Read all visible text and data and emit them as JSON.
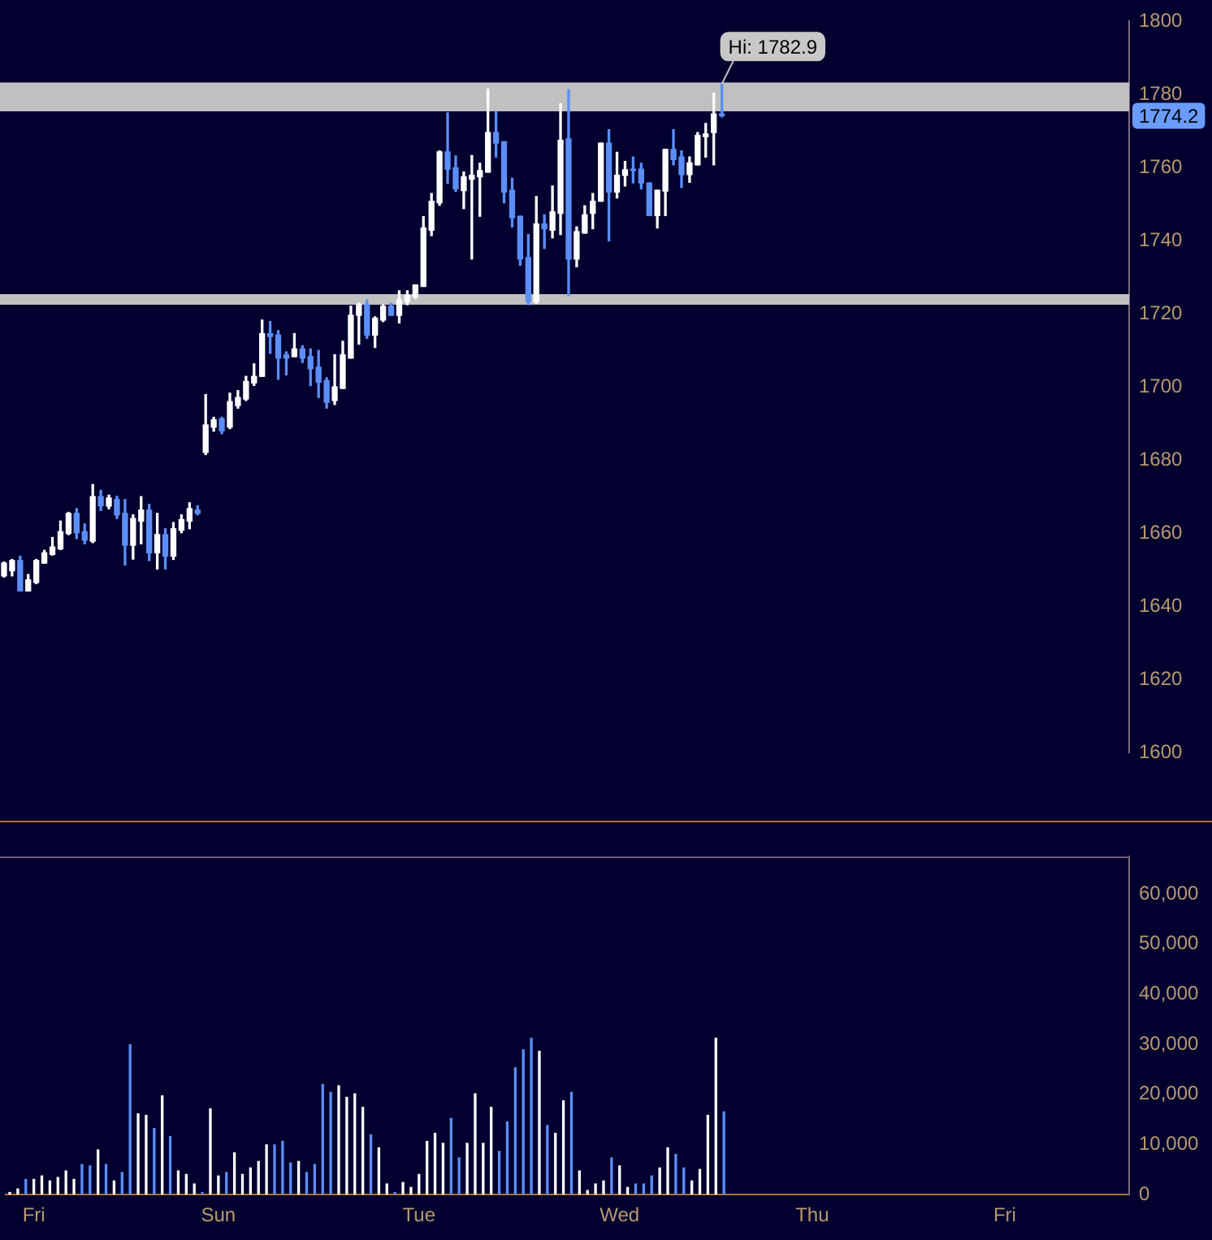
{
  "chart_data": [
    {
      "type": "candlestick",
      "categories": [
        null,
        null,
        null,
        null,
        null,
        null,
        null,
        null,
        null,
        null,
        null,
        null,
        null,
        null,
        null,
        null,
        null,
        null,
        null,
        null,
        null,
        null,
        null,
        null,
        null,
        null,
        null,
        null,
        null,
        null,
        null,
        null,
        null,
        null,
        null,
        null,
        null,
        null,
        null,
        null,
        null,
        null,
        null,
        null,
        null,
        null,
        null,
        null,
        null,
        null,
        null,
        null,
        null,
        null,
        null,
        null,
        null,
        null,
        null,
        null,
        null,
        null,
        null,
        null,
        null,
        null,
        null,
        null,
        null,
        null,
        null,
        null,
        null,
        null,
        null,
        null,
        null,
        null,
        null,
        null,
        null,
        null,
        null,
        null,
        null,
        null,
        null,
        null,
        null,
        null,
        null,
        null,
        null,
        null,
        null,
        null,
        null,
        null,
        null,
        null,
        null,
        null,
        null,
        null,
        null,
        null,
        null,
        null,
        null,
        null,
        null,
        null,
        null,
        null,
        null,
        null,
        null,
        null,
        null,
        null,
        null,
        null,
        null,
        null,
        null,
        null,
        null,
        null,
        null,
        null,
        null,
        null,
        null,
        null,
        null,
        null,
        null,
        null,
        null,
        null
      ],
      "ohlc": [
        [
          1648.3,
          1652.1,
          1648.0,
          1651.8
        ],
        [
          1649.7,
          1652.8,
          1648.3,
          1652.5
        ],
        [
          1652.5,
          1653.7,
          1644.2,
          1644.2
        ],
        [
          1644.2,
          1648.7,
          1644.2,
          1647.2
        ],
        [
          1646.5,
          1652.8,
          1646.2,
          1652.5
        ],
        [
          1651.8,
          1655.3,
          1651.8,
          1654.6
        ],
        [
          1654.2,
          1658.8,
          1654.0,
          1656.2
        ],
        [
          1655.7,
          1663.3,
          1655.5,
          1660.4
        ],
        [
          1659.9,
          1665.7,
          1659.6,
          1665.4
        ],
        [
          1665.4,
          1666.7,
          1658.5,
          1660.1
        ],
        [
          1660.4,
          1662.5,
          1657.1,
          1658.1
        ],
        [
          1657.8,
          1673.3,
          1657.4,
          1670.0
        ],
        [
          1670.0,
          1671.7,
          1666.2,
          1667.5
        ],
        [
          1667.4,
          1670.4,
          1666.7,
          1669.6
        ],
        [
          1669.2,
          1670.1,
          1664.0,
          1665.0
        ],
        [
          1665.4,
          1669.2,
          1651.3,
          1656.7
        ],
        [
          1656.7,
          1665.0,
          1652.9,
          1664.0
        ],
        [
          1663.3,
          1670.0,
          1657.1,
          1666.3
        ],
        [
          1666.3,
          1667.9,
          1652.5,
          1654.6
        ],
        [
          1654.6,
          1665.4,
          1650.2,
          1659.6
        ],
        [
          1659.6,
          1661.2,
          1650.2,
          1653.7
        ],
        [
          1653.7,
          1662.9,
          1652.8,
          1661.2
        ],
        [
          1660.8,
          1665.0,
          1660.1,
          1663.7
        ],
        [
          1663.3,
          1668.3,
          1661.2,
          1666.7
        ],
        [
          1666.3,
          1667.5,
          1665.0,
          1665.4
        ],
        [
          1682.1,
          1697.9,
          1681.5,
          1689.6
        ],
        [
          1689.0,
          1691.7,
          1687.9,
          1691.0
        ],
        [
          1691.3,
          1691.7,
          1687.2,
          1688.0
        ],
        [
          1689.0,
          1698.3,
          1688.6,
          1696.0
        ],
        [
          1694.9,
          1699.0,
          1694.2,
          1697.1
        ],
        [
          1696.7,
          1702.9,
          1696.3,
          1701.5
        ],
        [
          1701.1,
          1706.3,
          1700.4,
          1702.9
        ],
        [
          1702.9,
          1718.3,
          1702.9,
          1714.6
        ],
        [
          1714.6,
          1717.9,
          1709.2,
          1713.8
        ],
        [
          1714.2,
          1715.4,
          1702.1,
          1707.9
        ],
        [
          1708.8,
          1709.6,
          1703.3,
          1707.9
        ],
        [
          1708.3,
          1714.6,
          1708.3,
          1710.4
        ],
        [
          1710.4,
          1711.3,
          1706.7,
          1707.9
        ],
        [
          1708.3,
          1710.4,
          1700.4,
          1705.0
        ],
        [
          1705.4,
          1710.0,
          1697.1,
          1701.3
        ],
        [
          1701.7,
          1702.5,
          1694.2,
          1695.8
        ],
        [
          1696.3,
          1708.8,
          1695.2,
          1700.0
        ],
        [
          1699.6,
          1712.5,
          1699.6,
          1708.8
        ],
        [
          1707.9,
          1722.1,
          1707.9,
          1719.6
        ],
        [
          1719.6,
          1722.9,
          1711.7,
          1722.5
        ],
        [
          1722.5,
          1723.8,
          1713.3,
          1714.2
        ],
        [
          1714.2,
          1719.2,
          1710.8,
          1718.8
        ],
        [
          1718.3,
          1722.5,
          1717.9,
          1722.1
        ],
        [
          1722.1,
          1722.9,
          1719.6,
          1719.6
        ],
        [
          1719.6,
          1726.3,
          1717.5,
          1723.8
        ],
        [
          1723.3,
          1726.3,
          1722.5,
          1725.0
        ],
        [
          1724.6,
          1727.9,
          1724.2,
          1727.9
        ],
        [
          1727.5,
          1746.6,
          1727.5,
          1743.5
        ],
        [
          1742.9,
          1752.9,
          1741.4,
          1750.8
        ],
        [
          1750.4,
          1764.6,
          1749.7,
          1764.3
        ],
        [
          1764.3,
          1775.0,
          1755.7,
          1759.6
        ],
        [
          1760.0,
          1763.2,
          1753.5,
          1754.2
        ],
        [
          1753.7,
          1758.8,
          1748.8,
          1757.5
        ],
        [
          1756.8,
          1763.3,
          1735.0,
          1757.9
        ],
        [
          1757.5,
          1761.2,
          1746.7,
          1759.2
        ],
        [
          1758.8,
          1781.5,
          1758.8,
          1769.6
        ],
        [
          1769.6,
          1775.4,
          1762.9,
          1766.7
        ],
        [
          1767.1,
          1767.1,
          1750.4,
          1753.3
        ],
        [
          1753.8,
          1757.1,
          1743.8,
          1746.3
        ],
        [
          1746.7,
          1746.7,
          1733.3,
          1735.0
        ],
        [
          1735.4,
          1741.7,
          1722.5,
          1723.3
        ],
        [
          1723.3,
          1752.1,
          1722.9,
          1744.6
        ],
        [
          1744.6,
          1747.1,
          1737.9,
          1743.3
        ],
        [
          1742.9,
          1755.0,
          1740.8,
          1747.9
        ],
        [
          1747.5,
          1777.5,
          1741.7,
          1767.5
        ],
        [
          1767.9,
          1781.3,
          1725.0,
          1735.0
        ],
        [
          1735.0,
          1743.8,
          1732.9,
          1742.5
        ],
        [
          1742.1,
          1749.6,
          1742.1,
          1747.1
        ],
        [
          1747.5,
          1752.9,
          1743.3,
          1750.8
        ],
        [
          1750.8,
          1766.7,
          1750.8,
          1766.7
        ],
        [
          1766.7,
          1770.4,
          1740.0,
          1753.3
        ],
        [
          1753.3,
          1764.2,
          1751.7,
          1757.9
        ],
        [
          1757.9,
          1761.7,
          1755.0,
          1759.4
        ],
        [
          1759.6,
          1762.9,
          1755.8,
          1759.2
        ],
        [
          1759.6,
          1761.2,
          1754.2,
          1755.8
        ],
        [
          1755.8,
          1755.8,
          1746.9,
          1746.9
        ],
        [
          1746.9,
          1753.8,
          1743.5,
          1753.8
        ],
        [
          1753.6,
          1765.0,
          1746.9,
          1765.0
        ],
        [
          1765.0,
          1770.4,
          1760.8,
          1762.2
        ],
        [
          1762.9,
          1764.6,
          1754.6,
          1758.1
        ],
        [
          1758.1,
          1762.9,
          1756.0,
          1761.3
        ],
        [
          1760.8,
          1769.6,
          1760.8,
          1768.8
        ],
        [
          1768.5,
          1772.1,
          1762.9,
          1769.2
        ],
        [
          1769.6,
          1780.4,
          1760.8,
          1774.7
        ],
        [
          1774.7,
          1782.9,
          1773.9,
          1774.2
        ],
        null,
        null,
        null,
        null,
        null,
        null,
        null,
        null,
        null,
        null,
        null,
        null,
        null,
        null,
        null,
        null,
        null,
        null,
        null,
        null,
        null,
        null,
        null,
        null,
        null,
        null,
        null,
        null,
        null,
        null,
        null,
        null,
        null,
        null,
        null,
        null,
        null,
        null,
        null,
        null,
        null,
        null,
        null,
        null,
        null,
        null,
        null,
        null,
        null,
        null
      ],
      "colors": [
        "#ffffff",
        "#ffffff",
        "#5b8ef7",
        "#ffffff",
        "#ffffff",
        "#ffffff",
        "#ffffff",
        "#ffffff",
        "#ffffff",
        "#5b8ef7",
        "#5b8ef7",
        "#ffffff",
        "#5b8ef7",
        "#ffffff",
        "#5b8ef7",
        "#5b8ef7",
        "#ffffff",
        "#ffffff",
        "#5b8ef7",
        "#ffffff",
        "#5b8ef7",
        "#ffffff",
        "#ffffff",
        "#ffffff",
        "#5b8ef7",
        "#ffffff",
        "#ffffff",
        "#5b8ef7",
        "#ffffff",
        "#ffffff",
        "#ffffff",
        "#ffffff",
        "#ffffff",
        "#5b8ef7",
        "#5b8ef7",
        "#5b8ef7",
        "#ffffff",
        "#5b8ef7",
        "#5b8ef7",
        "#5b8ef7",
        "#5b8ef7",
        "#ffffff",
        "#ffffff",
        "#ffffff",
        "#ffffff",
        "#5b8ef7",
        "#ffffff",
        "#ffffff",
        "#5b8ef7",
        "#ffffff",
        "#ffffff",
        "#ffffff",
        "#ffffff",
        "#ffffff",
        "#ffffff",
        "#5b8ef7",
        "#5b8ef7",
        "#ffffff",
        "#ffffff",
        "#ffffff",
        "#ffffff",
        "#5b8ef7",
        "#5b8ef7",
        "#5b8ef7",
        "#5b8ef7",
        "#5b8ef7",
        "#ffffff",
        "#5b8ef7",
        "#ffffff",
        "#ffffff",
        "#5b8ef7",
        "#ffffff",
        "#ffffff",
        "#ffffff",
        "#ffffff",
        "#5b8ef7",
        "#ffffff",
        "#ffffff",
        "#5b8ef7",
        "#5b8ef7",
        "#5b8ef7",
        "#ffffff",
        "#ffffff",
        "#5b8ef7",
        "#5b8ef7",
        "#ffffff",
        "#ffffff",
        "#ffffff",
        "#ffffff",
        "#5b8ef7",
        null,
        null,
        null,
        null,
        null,
        null,
        null,
        null,
        null,
        null,
        null,
        null,
        null,
        null,
        null,
        null,
        null,
        null,
        null,
        null,
        null,
        null,
        null,
        null,
        null,
        null,
        null,
        null,
        null,
        null,
        null,
        null,
        null,
        null,
        null,
        null,
        null,
        null,
        null,
        null,
        null,
        null,
        null,
        null,
        null,
        null,
        null,
        null,
        null,
        null
      ],
      "ylim": [
        1600,
        1800
      ],
      "yticks": [
        1600,
        1620,
        1640,
        1660,
        1680,
        1700,
        1720,
        1740,
        1760,
        1780,
        1800
      ],
      "tick_labels": "y",
      "bands": [
        {
          "axis": "y",
          "from": 1775.4,
          "to": 1783.3,
          "color": "#c0c0c0"
        },
        {
          "axis": "y",
          "from": 1722.5,
          "to": 1725.4,
          "color": "#c0c0c0"
        }
      ],
      "annotations": [
        {
          "text": "Hi: 1782.9",
          "y": 1782.9
        },
        "1774.2"
      ]
    },
    {
      "type": "bar",
      "categories": [
        null,
        null,
        null,
        "Fri",
        null,
        null,
        null,
        null,
        null,
        null,
        null,
        null,
        null,
        null,
        null,
        null,
        null,
        null,
        null,
        null,
        null,
        null,
        null,
        null,
        null,
        null,
        "Sun",
        null,
        null,
        null,
        null,
        null,
        null,
        null,
        null,
        null,
        null,
        null,
        null,
        null,
        null,
        null,
        null,
        null,
        null,
        null,
        null,
        null,
        null,
        null,
        null,
        "Tue",
        null,
        null,
        null,
        null,
        null,
        null,
        null,
        null,
        null,
        null,
        null,
        null,
        null,
        null,
        null,
        null,
        null,
        null,
        null,
        null,
        null,
        null,
        null,
        null,
        "Wed",
        null,
        null,
        null,
        null,
        null,
        null,
        null,
        null,
        null,
        null,
        null,
        null,
        null,
        null,
        null,
        null,
        null,
        null,
        null,
        null,
        null,
        null,
        null,
        "Thu",
        null,
        null,
        null,
        null,
        null,
        null,
        null,
        null,
        null,
        null,
        null,
        null,
        null,
        null,
        null,
        null,
        null,
        null,
        null,
        null,
        null,
        null,
        null,
        "Fri",
        null,
        null,
        null,
        null,
        null,
        null,
        null,
        null,
        null,
        null,
        null,
        null,
        null,
        null,
        null
      ],
      "values": [
        400,
        1100,
        3000,
        3000,
        3700,
        2700,
        3400,
        4700,
        3000,
        6000,
        5700,
        8900,
        6000,
        2700,
        4400,
        29900,
        16100,
        15800,
        13200,
        19700,
        11600,
        4700,
        4000,
        2100,
        400,
        17100,
        3700,
        4400,
        8300,
        4000,
        5300,
        6600,
        9900,
        9900,
        10600,
        6300,
        6600,
        4400,
        6000,
        22000,
        20400,
        21700,
        19400,
        20100,
        17400,
        11900,
        9300,
        2100,
        400,
        2400,
        1400,
        4000,
        10600,
        12200,
        10200,
        15200,
        7300,
        10200,
        20100,
        10200,
        17400,
        8600,
        14500,
        25300,
        28900,
        31200,
        28600,
        13800,
        12200,
        18700,
        20400,
        4700,
        800,
        2100,
        2700,
        7300,
        5700,
        1400,
        2100,
        2100,
        3700,
        5300,
        9300,
        8000,
        5300,
        2700,
        5000,
        15800,
        31200,
        16500,
        null,
        null,
        null,
        null,
        null,
        null,
        null,
        null,
        null,
        null,
        null,
        null,
        null,
        null,
        null,
        null,
        null,
        null,
        null,
        null,
        null,
        null,
        null,
        null,
        null,
        null,
        null,
        null,
        null,
        null,
        null,
        null,
        null,
        null,
        null,
        null,
        null,
        null,
        null,
        null,
        null,
        null,
        null,
        null,
        null,
        null,
        null,
        null,
        null,
        null
      ],
      "colors": [
        "#ffffff",
        "#ffffff",
        "#5b8ef7",
        "#ffffff",
        "#ffffff",
        "#ffffff",
        "#ffffff",
        "#ffffff",
        "#ffffff",
        "#5b8ef7",
        "#5b8ef7",
        "#ffffff",
        "#5b8ef7",
        "#ffffff",
        "#5b8ef7",
        "#5b8ef7",
        "#ffffff",
        "#ffffff",
        "#5b8ef7",
        "#ffffff",
        "#5b8ef7",
        "#ffffff",
        "#ffffff",
        "#ffffff",
        "#5b8ef7",
        "#ffffff",
        "#ffffff",
        "#5b8ef7",
        "#ffffff",
        "#ffffff",
        "#ffffff",
        "#ffffff",
        "#ffffff",
        "#5b8ef7",
        "#5b8ef7",
        "#5b8ef7",
        "#ffffff",
        "#5b8ef7",
        "#5b8ef7",
        "#5b8ef7",
        "#5b8ef7",
        "#ffffff",
        "#ffffff",
        "#ffffff",
        "#ffffff",
        "#5b8ef7",
        "#ffffff",
        "#ffffff",
        "#5b8ef7",
        "#ffffff",
        "#ffffff",
        "#ffffff",
        "#ffffff",
        "#ffffff",
        "#ffffff",
        "#5b8ef7",
        "#5b8ef7",
        "#ffffff",
        "#ffffff",
        "#ffffff",
        "#ffffff",
        "#5b8ef7",
        "#5b8ef7",
        "#5b8ef7",
        "#5b8ef7",
        "#5b8ef7",
        "#ffffff",
        "#5b8ef7",
        "#ffffff",
        "#ffffff",
        "#5b8ef7",
        "#ffffff",
        "#ffffff",
        "#ffffff",
        "#ffffff",
        "#5b8ef7",
        "#ffffff",
        "#ffffff",
        "#5b8ef7",
        "#5b8ef7",
        "#5b8ef7",
        "#ffffff",
        "#ffffff",
        "#5b8ef7",
        "#5b8ef7",
        "#ffffff",
        "#ffffff",
        "#ffffff",
        "#ffffff",
        "#5b8ef7",
        null,
        null,
        null,
        null,
        null,
        null,
        null,
        null,
        null,
        null,
        null,
        null,
        null,
        null,
        null,
        null,
        null,
        null,
        null,
        null,
        null,
        null,
        null,
        null,
        null,
        null,
        null,
        null,
        null,
        null,
        null,
        null,
        null,
        null,
        null,
        null,
        null,
        null,
        null,
        null,
        null,
        null,
        null,
        null,
        null,
        null,
        null,
        null,
        null,
        null
      ],
      "ylim": [
        0,
        67500
      ],
      "yticks": [
        0,
        {
          "value": 10000,
          "label": "10,000"
        },
        {
          "value": 20000,
          "label": "20,000"
        },
        {
          "value": 30000,
          "label": "30,000"
        },
        {
          "value": 40000,
          "label": "40,000"
        },
        {
          "value": 50000,
          "label": "50,000"
        },
        {
          "value": 60000,
          "label": "60,000"
        }
      ]
    }
  ]
}
